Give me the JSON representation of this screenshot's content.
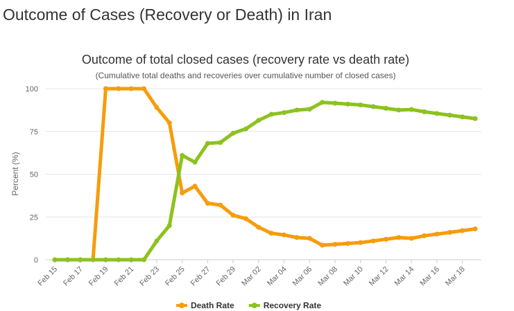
{
  "page": {
    "heading": "Outcome of Cases (Recovery or Death) in Iran"
  },
  "chart_data": {
    "type": "line",
    "title": "Outcome of total closed cases (recovery rate vs death rate)",
    "subtitle": "(Cumulative total deaths and recoveries over cumulative number of closed cases)",
    "xlabel": "",
    "ylabel": "Percent (%)",
    "ylim": [
      0,
      100
    ],
    "yticks": [
      0,
      25,
      50,
      75,
      100
    ],
    "grid": true,
    "legend_position": "bottom-center",
    "x": [
      "Feb 15",
      "Feb 16",
      "Feb 17",
      "Feb 18",
      "Feb 19",
      "Feb 20",
      "Feb 21",
      "Feb 22",
      "Feb 23",
      "Feb 24",
      "Feb 25",
      "Feb 26",
      "Feb 27",
      "Feb 28",
      "Feb 29",
      "Mar 01",
      "Mar 02",
      "Mar 03",
      "Mar 04",
      "Mar 05",
      "Mar 06",
      "Mar 07",
      "Mar 08",
      "Mar 09",
      "Mar 10",
      "Mar 11",
      "Mar 12",
      "Mar 13",
      "Mar 14",
      "Mar 15",
      "Mar 16",
      "Mar 17",
      "Mar 18",
      "Mar 19"
    ],
    "tick_labels": [
      "Feb 15",
      "Feb 17",
      "Feb 19",
      "Feb 21",
      "Feb 23",
      "Feb 25",
      "Feb 27",
      "Feb 29",
      "Mar 02",
      "Mar 04",
      "Mar 06",
      "Mar 08",
      "Mar 10",
      "Mar 12",
      "Mar 14",
      "Mar 16",
      "Mar 18"
    ],
    "series": [
      {
        "name": "Death Rate",
        "color": "#f79c0b",
        "values": [
          0,
          0,
          0,
          0,
          100,
          100,
          100,
          100,
          89,
          80,
          39,
          43,
          33,
          32,
          26,
          24,
          19,
          15.5,
          14.5,
          13,
          12.5,
          8.5,
          9,
          9.5,
          10,
          11,
          12,
          13,
          12.5,
          14,
          15,
          16,
          17,
          18
        ]
      },
      {
        "name": "Recovery Rate",
        "color": "#8dc21f",
        "values": [
          0,
          0,
          0,
          0,
          0,
          0,
          0,
          0,
          11,
          20,
          61,
          57,
          68,
          68.5,
          74,
          76.5,
          81.5,
          85,
          86,
          87.5,
          88,
          92,
          91.5,
          91,
          90.5,
          89.5,
          88.5,
          87.5,
          87.8,
          86.5,
          85.5,
          84.5,
          83.5,
          82.5
        ]
      }
    ]
  }
}
